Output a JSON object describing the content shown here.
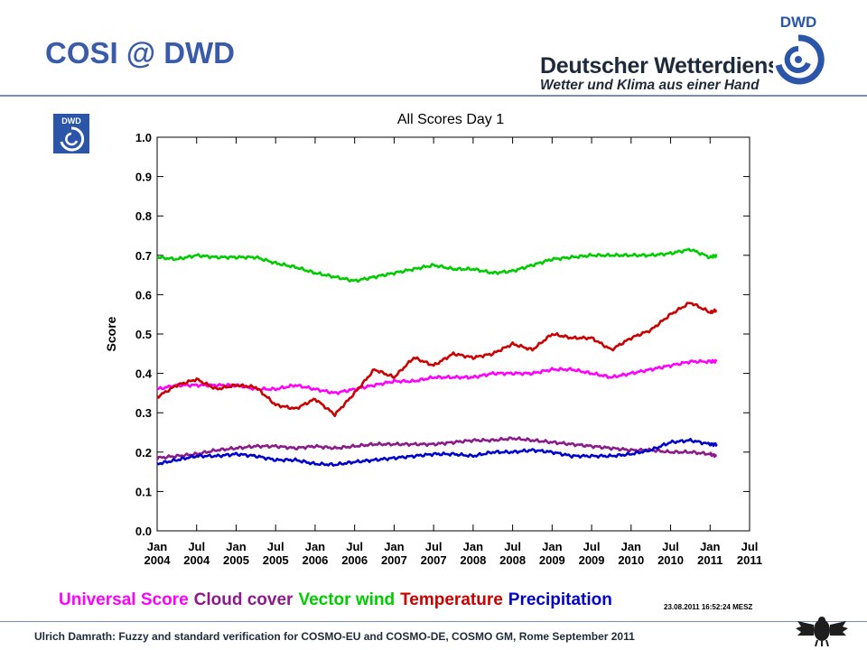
{
  "slide": {
    "title": "COSI @ DWD",
    "brand_name": "Deutscher Wetterdienst",
    "brand_tagline": "Wetter und Klima aus einer Hand",
    "logo_text": "DWD",
    "footer": "Ulrich Damrath: Fuzzy and standard verification for COSMO-EU and COSMO-DE, COSMO GM, Rome September 2011"
  },
  "colors": {
    "title": "#3a5ba9",
    "plot_bg": "#ffffff",
    "chart_bg": "#ffffff",
    "logo_blue": "#2a55a8"
  },
  "chart_data": {
    "type": "line",
    "title": "All Scores  Day 1",
    "ylabel": "Score",
    "xlabel": "",
    "ylim": [
      0.0,
      1.0
    ],
    "yticks": [
      "0.0",
      "0.1",
      "0.2",
      "0.3",
      "0.4",
      "0.5",
      "0.6",
      "0.7",
      "0.8",
      "0.9",
      "1.0"
    ],
    "xlim": [
      "2004-01",
      "2011-07"
    ],
    "xticks": [
      {
        "top": "Jan",
        "bottom": "2004"
      },
      {
        "top": "Jul",
        "bottom": "2004"
      },
      {
        "top": "Jan",
        "bottom": "2005"
      },
      {
        "top": "Jul",
        "bottom": "2005"
      },
      {
        "top": "Jan",
        "bottom": "2006"
      },
      {
        "top": "Jul",
        "bottom": "2006"
      },
      {
        "top": "Jan",
        "bottom": "2007"
      },
      {
        "top": "Jul",
        "bottom": "2007"
      },
      {
        "top": "Jan",
        "bottom": "2008"
      },
      {
        "top": "Jul",
        "bottom": "2008"
      },
      {
        "top": "Jan",
        "bottom": "2009"
      },
      {
        "top": "Jul",
        "bottom": "2009"
      },
      {
        "top": "Jan",
        "bottom": "2010"
      },
      {
        "top": "Jul",
        "bottom": "2010"
      },
      {
        "top": "Jan",
        "bottom": "2011"
      },
      {
        "top": "Jul",
        "bottom": "2011"
      }
    ],
    "grid": false,
    "legend_position": "bottom",
    "timestamp": "23.08.2011  16:52:24  MESZ",
    "x": [
      "2004-01",
      "2004-04",
      "2004-07",
      "2004-10",
      "2005-01",
      "2005-04",
      "2005-07",
      "2005-10",
      "2006-01",
      "2006-04",
      "2006-07",
      "2006-10",
      "2007-01",
      "2007-04",
      "2007-07",
      "2007-10",
      "2008-01",
      "2008-04",
      "2008-07",
      "2008-10",
      "2009-01",
      "2009-04",
      "2009-07",
      "2009-10",
      "2010-01",
      "2010-04",
      "2010-07",
      "2010-10",
      "2011-01",
      "2011-02"
    ],
    "series": [
      {
        "name": "Universal Score",
        "color": "#ff00ff",
        "values": [
          0.36,
          0.37,
          0.37,
          0.37,
          0.37,
          0.36,
          0.36,
          0.37,
          0.36,
          0.35,
          0.36,
          0.37,
          0.38,
          0.38,
          0.39,
          0.39,
          0.39,
          0.4,
          0.4,
          0.4,
          0.41,
          0.41,
          0.4,
          0.39,
          0.4,
          0.41,
          0.42,
          0.43,
          0.43,
          0.43
        ]
      },
      {
        "name": "Cloud cover",
        "color": "#8b1a8b",
        "values": [
          0.185,
          0.19,
          0.195,
          0.205,
          0.21,
          0.215,
          0.215,
          0.21,
          0.215,
          0.21,
          0.215,
          0.22,
          0.22,
          0.22,
          0.22,
          0.225,
          0.23,
          0.23,
          0.235,
          0.23,
          0.225,
          0.22,
          0.215,
          0.21,
          0.205,
          0.205,
          0.2,
          0.2,
          0.195,
          0.19
        ]
      },
      {
        "name": "Vector wind",
        "color": "#00cc00",
        "values": [
          0.695,
          0.69,
          0.7,
          0.695,
          0.695,
          0.695,
          0.68,
          0.67,
          0.655,
          0.645,
          0.635,
          0.645,
          0.655,
          0.665,
          0.675,
          0.665,
          0.665,
          0.655,
          0.66,
          0.675,
          0.69,
          0.695,
          0.7,
          0.7,
          0.7,
          0.7,
          0.705,
          0.715,
          0.695,
          0.7
        ]
      },
      {
        "name": "Temperature",
        "color": "#cc0000",
        "values": [
          0.34,
          0.37,
          0.385,
          0.36,
          0.37,
          0.365,
          0.32,
          0.31,
          0.335,
          0.295,
          0.35,
          0.41,
          0.39,
          0.44,
          0.42,
          0.45,
          0.44,
          0.45,
          0.475,
          0.46,
          0.5,
          0.49,
          0.49,
          0.46,
          0.49,
          0.51,
          0.55,
          0.58,
          0.555,
          0.56
        ]
      },
      {
        "name": "Precipitation",
        "color": "#0000cc",
        "values": [
          0.17,
          0.18,
          0.19,
          0.19,
          0.195,
          0.19,
          0.18,
          0.18,
          0.17,
          0.168,
          0.175,
          0.18,
          0.185,
          0.19,
          0.195,
          0.195,
          0.19,
          0.2,
          0.2,
          0.205,
          0.2,
          0.19,
          0.19,
          0.19,
          0.195,
          0.205,
          0.225,
          0.23,
          0.22,
          0.22
        ]
      }
    ]
  }
}
